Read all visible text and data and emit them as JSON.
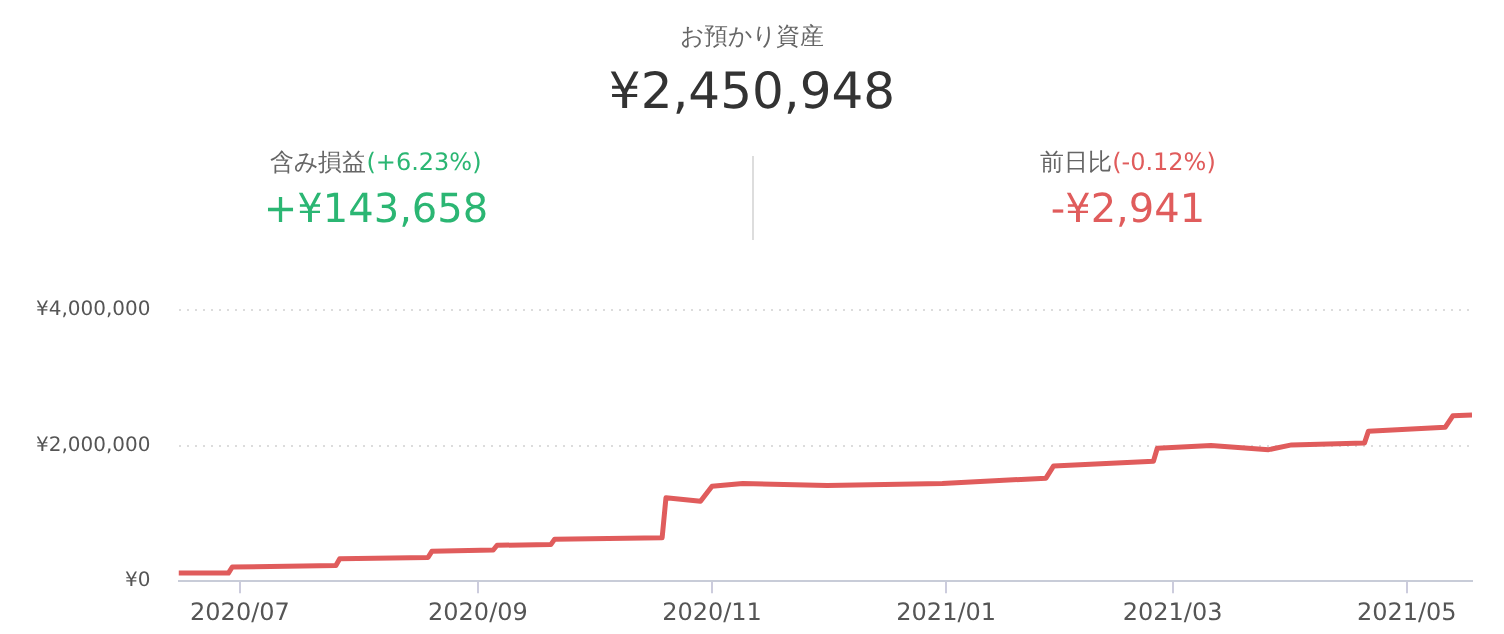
{
  "chart_data": {
    "type": "line",
    "title": "お預かり資産",
    "annotations": [
      "¥2,450,948",
      "含み損益",
      "(+6.23%)",
      "+¥143,658",
      "前日比",
      "(-0.12%)",
      "-¥2,941"
    ],
    "x": [
      "2020-06-15",
      "2020-06-28",
      "2020-06-29",
      "2020-07-26",
      "2020-07-27",
      "2020-08-19",
      "2020-08-20",
      "2020-09-05",
      "2020-09-06",
      "2020-09-20",
      "2020-09-21",
      "2020-10-19",
      "2020-10-20",
      "2020-10-29",
      "2020-11-01",
      "2020-11-09",
      "2020-12-01",
      "2020-12-31",
      "2021-01-27",
      "2021-01-29",
      "2021-02-24",
      "2021-02-25",
      "2021-03-11",
      "2021-03-26",
      "2021-04-01",
      "2021-04-20",
      "2021-04-21",
      "2021-05-11",
      "2021-05-13",
      "2021-05-18"
    ],
    "series": [
      {
        "color": "#e05c5c",
        "values": [
          120000,
          120000,
          210000,
          230000,
          330000,
          350000,
          440000,
          460000,
          530000,
          540000,
          620000,
          640000,
          1230000,
          1180000,
          1400000,
          1440000,
          1410000,
          1440000,
          1520000,
          1700000,
          1770000,
          1960000,
          2000000,
          1940000,
          2010000,
          2040000,
          2210000,
          2270000,
          2440000,
          2450000
        ]
      }
    ],
    "xlim": [
      "2020-06-15",
      "2021-05-18"
    ],
    "xticks": [
      {
        "value": "2020-07-01",
        "label": "2020/07"
      },
      {
        "value": "2020-09-01",
        "label": "2020/09"
      },
      {
        "value": "2020-11-01",
        "label": "2020/11"
      },
      {
        "value": "2021-01-01",
        "label": "2021/01"
      },
      {
        "value": "2021-03-01",
        "label": "2021/03"
      },
      {
        "value": "2021-05-01",
        "label": "2021/05"
      }
    ],
    "ylim": [
      0,
      4000000
    ],
    "yticks": [
      {
        "value": 0,
        "label": "¥0"
      },
      {
        "value": 2000000,
        "label": "¥2,000,000"
      },
      {
        "value": 4000000,
        "label": "¥4,000,000"
      }
    ],
    "grid": "y",
    "legend": false,
    "marker": "none",
    "line_style": "solid"
  }
}
